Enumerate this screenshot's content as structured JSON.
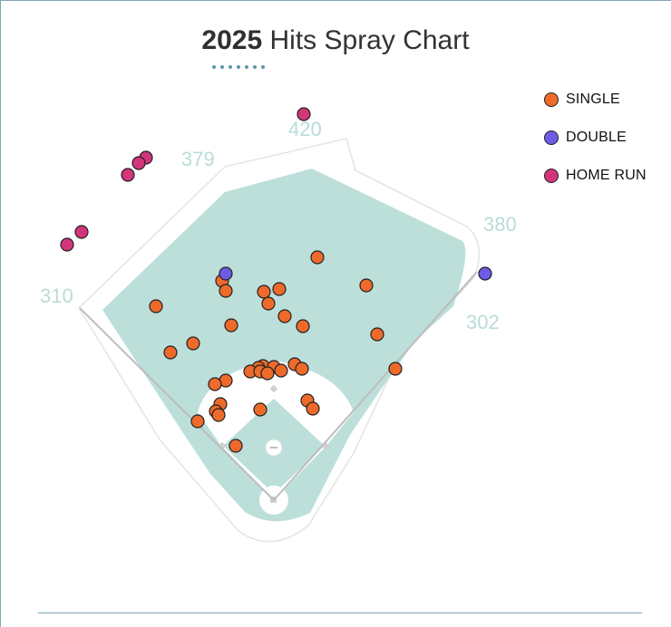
{
  "title": {
    "year": "2025",
    "rest": "Hits Spray Chart"
  },
  "legend": [
    {
      "label": "SINGLE",
      "color": "#ee6a2b"
    },
    {
      "label": "DOUBLE",
      "color": "#6e5ce6"
    },
    {
      "label": "HOME RUN",
      "color": "#d2357a"
    }
  ],
  "distances": [
    "310",
    "379",
    "420",
    "380",
    "302"
  ],
  "colors": {
    "outfield": "#bcdfda",
    "infield_dirt": "#ffffff",
    "wall": "#e4e4e4",
    "foul_line": "#bdbdbd",
    "accent": "#5f97a8"
  },
  "chart_data": {
    "type": "scatter",
    "title": "2025 Hits Spray Chart",
    "legend_position": "top-right",
    "series": [
      {
        "name": "SINGLE",
        "points": [
          [
            350,
            284
          ],
          [
            245,
            310
          ],
          [
            249,
            321
          ],
          [
            291,
            322
          ],
          [
            308,
            319
          ],
          [
            296,
            335
          ],
          [
            172,
            338
          ],
          [
            404,
            315
          ],
          [
            314,
            349
          ],
          [
            255,
            359
          ],
          [
            334,
            360
          ],
          [
            416,
            369
          ],
          [
            213,
            379
          ],
          [
            188,
            389
          ],
          [
            290,
            404
          ],
          [
            285,
            406
          ],
          [
            302,
            405
          ],
          [
            325,
            402
          ],
          [
            276,
            410
          ],
          [
            287,
            410
          ],
          [
            333,
            407
          ],
          [
            310,
            409
          ],
          [
            295,
            412
          ],
          [
            436,
            407
          ],
          [
            249,
            420
          ],
          [
            237,
            424
          ],
          [
            339,
            442
          ],
          [
            345,
            451
          ],
          [
            243,
            446
          ],
          [
            238,
            454
          ],
          [
            241,
            458
          ],
          [
            287,
            452
          ],
          [
            218,
            465
          ],
          [
            260,
            492
          ]
        ]
      },
      {
        "name": "DOUBLE",
        "points": [
          [
            249,
            302
          ],
          [
            535,
            302
          ]
        ]
      },
      {
        "name": "HOME RUN",
        "points": [
          [
            335,
            126
          ],
          [
            161,
            174
          ],
          [
            153,
            180
          ],
          [
            141,
            193
          ],
          [
            90,
            256
          ],
          [
            74,
            270
          ]
        ]
      }
    ]
  }
}
